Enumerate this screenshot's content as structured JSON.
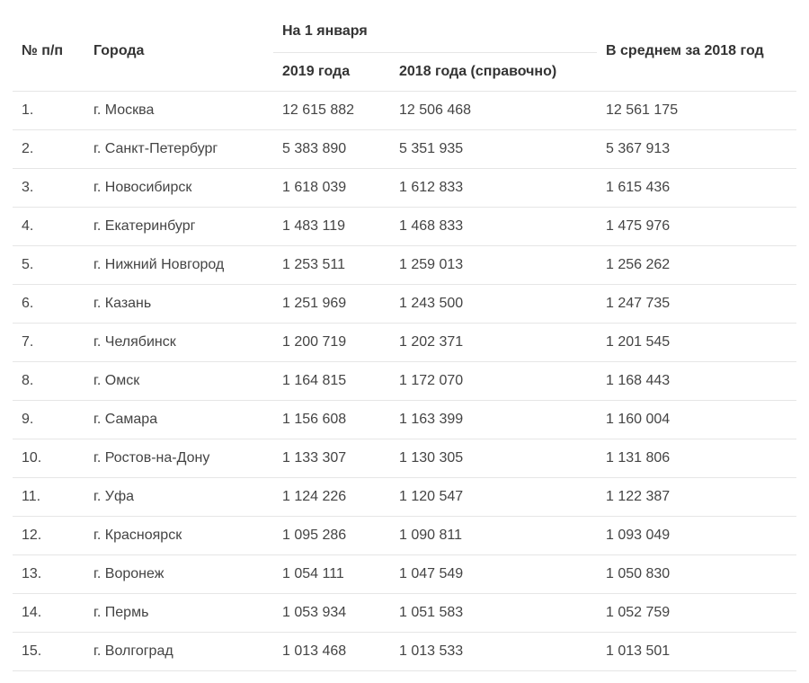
{
  "table": {
    "type": "table",
    "background_color": "#ffffff",
    "border_color": "#e6e6e6",
    "text_color": "#333333",
    "header_font_weight": "700",
    "body_fontsize_pt": 12,
    "header_fontsize_pt": 12,
    "columns": {
      "num": {
        "label": "№ п/п"
      },
      "city": {
        "label": "Города"
      },
      "jan_group": {
        "label": "На 1 января"
      },
      "y2019": {
        "label": "2019 года"
      },
      "y2018": {
        "label": "2018 года (справочно)"
      },
      "avg": {
        "label": "В среднем за 2018 год"
      }
    },
    "rows": [
      {
        "num": "1.",
        "city": "г. Москва",
        "y2019": "12 615 882",
        "y2018": "12 506 468",
        "avg": "12 561 175"
      },
      {
        "num": "2.",
        "city": "г. Санкт-Петербург",
        "y2019": "5 383 890",
        "y2018": "5 351 935",
        "avg": "5 367 913"
      },
      {
        "num": "3.",
        "city": "г. Новосибирск",
        "y2019": "1 618 039",
        "y2018": "1 612 833",
        "avg": "1 615 436"
      },
      {
        "num": "4.",
        "city": "г. Екатеринбург",
        "y2019": "1 483 119",
        "y2018": "1 468 833",
        "avg": "1 475 976"
      },
      {
        "num": "5.",
        "city": "г. Нижний Новгород",
        "y2019": "1 253 511",
        "y2018": "1 259 013",
        "avg": "1 256 262"
      },
      {
        "num": "6.",
        "city": "г. Казань",
        "y2019": "1 251 969",
        "y2018": "1 243 500",
        "avg": "1 247 735"
      },
      {
        "num": "7.",
        "city": "г. Челябинск",
        "y2019": "1 200 719",
        "y2018": "1 202 371",
        "avg": "1 201 545"
      },
      {
        "num": "8.",
        "city": "г. Омск",
        "y2019": "1 164 815",
        "y2018": "1 172 070",
        "avg": "1 168 443"
      },
      {
        "num": "9.",
        "city": "г. Самара",
        "y2019": "1 156 608",
        "y2018": "1 163 399",
        "avg": "1 160 004"
      },
      {
        "num": "10.",
        "city": "г. Ростов-на-Дону",
        "y2019": "1 133 307",
        "y2018": "1 130 305",
        "avg": "1 131 806"
      },
      {
        "num": "11.",
        "city": "г. Уфа",
        "y2019": "1 124 226",
        "y2018": "1 120 547",
        "avg": "1 122 387"
      },
      {
        "num": "12.",
        "city": "г. Красноярск",
        "y2019": "1 095 286",
        "y2018": "1 090 811",
        "avg": "1 093 049"
      },
      {
        "num": "13.",
        "city": "г. Воронеж",
        "y2019": "1 054 111",
        "y2018": "1 047 549",
        "avg": "1 050 830"
      },
      {
        "num": "14.",
        "city": "г. Пермь",
        "y2019": "1 053 934",
        "y2018": "1 051 583",
        "avg": "1 052 759"
      },
      {
        "num": "15.",
        "city": "г. Волгоград",
        "y2019": "1 013 468",
        "y2018": "1 013 533",
        "avg": "1 013 501"
      }
    ]
  }
}
